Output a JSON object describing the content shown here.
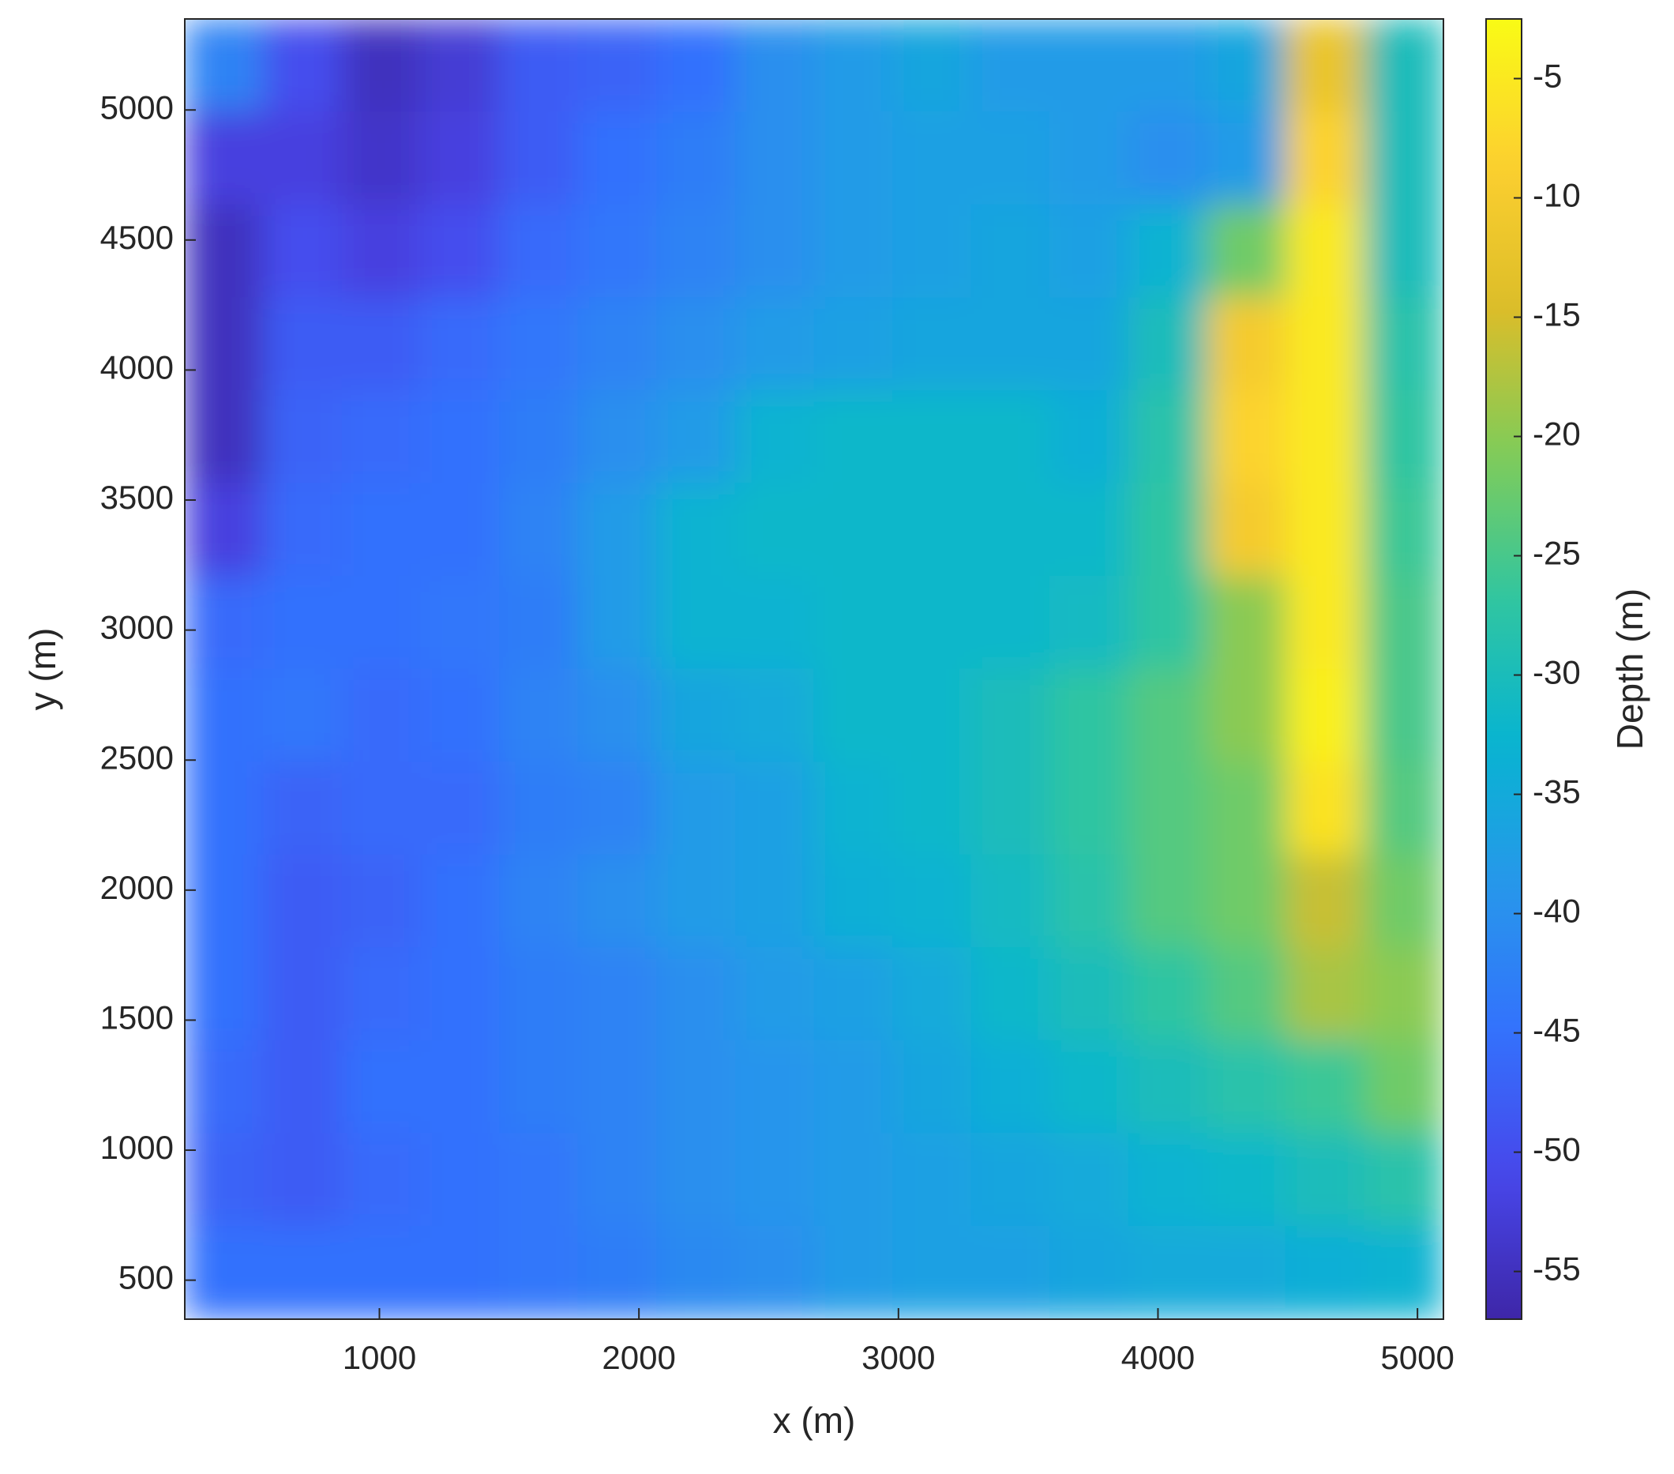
{
  "chart_data": {
    "type": "contour",
    "xlabel": "x (m)",
    "ylabel": "y (m)",
    "colorbar_label": "Depth (m)",
    "colormap": "parula",
    "xlim": [
      250,
      5100
    ],
    "ylim": [
      350,
      5350
    ],
    "xticks": [
      1000,
      2000,
      3000,
      4000,
      5000
    ],
    "yticks": [
      500,
      1000,
      1500,
      2000,
      2500,
      3000,
      3500,
      4000,
      4500,
      5000
    ],
    "clim": [
      -57,
      -2.5
    ],
    "cticks": [
      -55,
      -50,
      -45,
      -40,
      -35,
      -30,
      -25,
      -20,
      -15,
      -10,
      -5
    ],
    "x": [
      402,
      705,
      1008,
      1311,
      1614,
      1917,
      2220,
      2523,
      2826,
      3129,
      3432,
      3735,
      4038,
      4341,
      4644,
      4947
    ],
    "y": [
      5171,
      4814,
      4457,
      4100,
      3743,
      3386,
      3029,
      2671,
      2314,
      1957,
      1600,
      1243,
      886,
      529
    ],
    "z": [
      [
        -42,
        -50,
        -55,
        -53,
        -48,
        -47,
        -45,
        -40,
        -38,
        -36,
        -38,
        -38,
        -38,
        -36,
        -12,
        -30
      ],
      [
        -52,
        -52,
        -54,
        -52,
        -48,
        -45,
        -43,
        -40,
        -38,
        -37,
        -37,
        -38,
        -40,
        -38,
        -8,
        -30
      ],
      [
        -55,
        -50,
        -52,
        -50,
        -46,
        -44,
        -42,
        -40,
        -38,
        -37,
        -36,
        -37,
        -33,
        -22,
        -5,
        -30
      ],
      [
        -55,
        -48,
        -48,
        -46,
        -44,
        -42,
        -40,
        -38,
        -37,
        -36,
        -36,
        -36,
        -30,
        -10,
        -5,
        -28
      ],
      [
        -55,
        -47,
        -46,
        -45,
        -43,
        -40,
        -38,
        -33,
        -32,
        -32,
        -32,
        -34,
        -28,
        -8,
        -5,
        -27
      ],
      [
        -52,
        -46,
        -45,
        -45,
        -42,
        -38,
        -33,
        -32,
        -32,
        -32,
        -32,
        -32,
        -27,
        -10,
        -5,
        -26
      ],
      [
        -46,
        -45,
        -45,
        -44,
        -43,
        -38,
        -33,
        -33,
        -32,
        -32,
        -32,
        -31,
        -27,
        -20,
        -5,
        -25
      ],
      [
        -45,
        -44,
        -46,
        -45,
        -42,
        -40,
        -36,
        -35,
        -32,
        -32,
        -30,
        -27,
        -24,
        -20,
        -4,
        -25
      ],
      [
        -45,
        -47,
        -46,
        -46,
        -43,
        -42,
        -38,
        -37,
        -33,
        -32,
        -30,
        -27,
        -24,
        -22,
        -6,
        -24
      ],
      [
        -45,
        -48,
        -47,
        -45,
        -42,
        -40,
        -38,
        -37,
        -34,
        -33,
        -31,
        -28,
        -24,
        -22,
        -16,
        -22
      ],
      [
        -45,
        -48,
        -46,
        -45,
        -43,
        -42,
        -40,
        -38,
        -37,
        -35,
        -32,
        -30,
        -27,
        -24,
        -18,
        -20
      ],
      [
        -46,
        -48,
        -45,
        -45,
        -43,
        -42,
        -40,
        -39,
        -38,
        -36,
        -34,
        -32,
        -30,
        -28,
        -26,
        -22
      ],
      [
        -47,
        -48,
        -46,
        -45,
        -44,
        -42,
        -40,
        -39,
        -38,
        -37,
        -36,
        -35,
        -33,
        -32,
        -30,
        -28
      ],
      [
        -45,
        -45,
        -45,
        -45,
        -44,
        -43,
        -41,
        -40,
        -38,
        -37,
        -37,
        -36,
        -35,
        -35,
        -34,
        -33
      ]
    ]
  }
}
